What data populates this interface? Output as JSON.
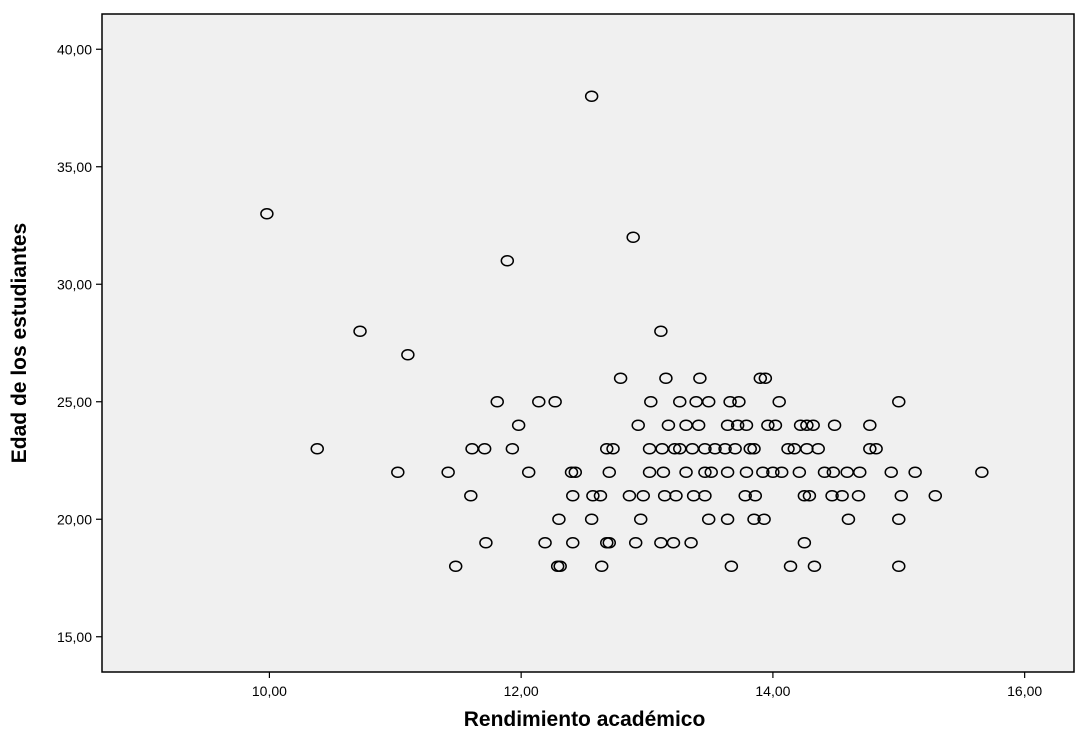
{
  "chart_data": {
    "type": "scatter",
    "title": "",
    "xlabel": "Rendimiento académico",
    "ylabel": "Edad de los estudiantes",
    "xlim": [
      8.67,
      16.4
    ],
    "ylim": [
      13.5,
      41.5
    ],
    "xticks": [
      10,
      12,
      14,
      16
    ],
    "yticks": [
      15,
      20,
      25,
      30,
      35,
      40
    ],
    "tick_format": "comma-2-decimals",
    "grid": false,
    "legend": "none",
    "plot_background": "#f0f0f0",
    "marker": "open-circle",
    "marker_color": "#000000",
    "points": [
      [
        12.56,
        38
      ],
      [
        9.98,
        33
      ],
      [
        12.89,
        32
      ],
      [
        11.89,
        31
      ],
      [
        10.72,
        28
      ],
      [
        13.11,
        28
      ],
      [
        11.1,
        27
      ],
      [
        12.79,
        26
      ],
      [
        13.15,
        26
      ],
      [
        13.42,
        26
      ],
      [
        13.9,
        26
      ],
      [
        13.94,
        26
      ],
      [
        11.81,
        25
      ],
      [
        12.14,
        25
      ],
      [
        12.27,
        25
      ],
      [
        13.03,
        25
      ],
      [
        13.26,
        25
      ],
      [
        13.39,
        25
      ],
      [
        13.49,
        25
      ],
      [
        13.66,
        25
      ],
      [
        13.73,
        25
      ],
      [
        14.05,
        25
      ],
      [
        15.0,
        25
      ],
      [
        11.98,
        24
      ],
      [
        12.93,
        24
      ],
      [
        13.17,
        24
      ],
      [
        13.31,
        24
      ],
      [
        13.41,
        24
      ],
      [
        13.64,
        24
      ],
      [
        13.72,
        24
      ],
      [
        13.79,
        24
      ],
      [
        13.96,
        24
      ],
      [
        14.02,
        24
      ],
      [
        14.22,
        24
      ],
      [
        14.27,
        24
      ],
      [
        14.32,
        24
      ],
      [
        14.49,
        24
      ],
      [
        14.77,
        24
      ],
      [
        10.38,
        23
      ],
      [
        11.61,
        23
      ],
      [
        11.71,
        23
      ],
      [
        11.93,
        23
      ],
      [
        12.68,
        23
      ],
      [
        12.73,
        23
      ],
      [
        13.02,
        23
      ],
      [
        13.12,
        23
      ],
      [
        13.22,
        23
      ],
      [
        13.26,
        23
      ],
      [
        13.36,
        23
      ],
      [
        13.46,
        23
      ],
      [
        13.54,
        23
      ],
      [
        13.62,
        23
      ],
      [
        13.7,
        23
      ],
      [
        13.82,
        23
      ],
      [
        13.85,
        23
      ],
      [
        14.12,
        23
      ],
      [
        14.17,
        23
      ],
      [
        14.27,
        23
      ],
      [
        14.36,
        23
      ],
      [
        14.77,
        23
      ],
      [
        14.82,
        23
      ],
      [
        11.02,
        22
      ],
      [
        11.42,
        22
      ],
      [
        12.06,
        22
      ],
      [
        12.4,
        22
      ],
      [
        12.43,
        22
      ],
      [
        12.7,
        22
      ],
      [
        13.02,
        22
      ],
      [
        13.13,
        22
      ],
      [
        13.31,
        22
      ],
      [
        13.46,
        22
      ],
      [
        13.51,
        22
      ],
      [
        13.64,
        22
      ],
      [
        13.79,
        22
      ],
      [
        13.92,
        22
      ],
      [
        14.0,
        22
      ],
      [
        14.07,
        22
      ],
      [
        14.21,
        22
      ],
      [
        14.41,
        22
      ],
      [
        14.48,
        22
      ],
      [
        14.59,
        22
      ],
      [
        14.69,
        22
      ],
      [
        14.94,
        22
      ],
      [
        15.13,
        22
      ],
      [
        15.66,
        22
      ],
      [
        11.6,
        21
      ],
      [
        12.41,
        21
      ],
      [
        12.57,
        21
      ],
      [
        12.63,
        21
      ],
      [
        12.86,
        21
      ],
      [
        12.97,
        21
      ],
      [
        13.14,
        21
      ],
      [
        13.23,
        21
      ],
      [
        13.37,
        21
      ],
      [
        13.46,
        21
      ],
      [
        13.78,
        21
      ],
      [
        13.86,
        21
      ],
      [
        14.25,
        21
      ],
      [
        14.29,
        21
      ],
      [
        14.47,
        21
      ],
      [
        14.55,
        21
      ],
      [
        14.68,
        21
      ],
      [
        15.02,
        21
      ],
      [
        15.29,
        21
      ],
      [
        12.3,
        20
      ],
      [
        12.56,
        20
      ],
      [
        12.95,
        20
      ],
      [
        13.49,
        20
      ],
      [
        13.64,
        20
      ],
      [
        13.85,
        20
      ],
      [
        13.93,
        20
      ],
      [
        14.6,
        20
      ],
      [
        15.0,
        20
      ],
      [
        11.72,
        19
      ],
      [
        12.19,
        19
      ],
      [
        12.41,
        19
      ],
      [
        12.68,
        19
      ],
      [
        12.7,
        19
      ],
      [
        12.91,
        19
      ],
      [
        13.11,
        19
      ],
      [
        13.21,
        19
      ],
      [
        13.35,
        19
      ],
      [
        14.25,
        19
      ],
      [
        11.48,
        18
      ],
      [
        12.29,
        18
      ],
      [
        12.31,
        18
      ],
      [
        12.64,
        18
      ],
      [
        13.67,
        18
      ],
      [
        14.14,
        18
      ],
      [
        14.33,
        18
      ],
      [
        15.0,
        18
      ]
    ]
  }
}
